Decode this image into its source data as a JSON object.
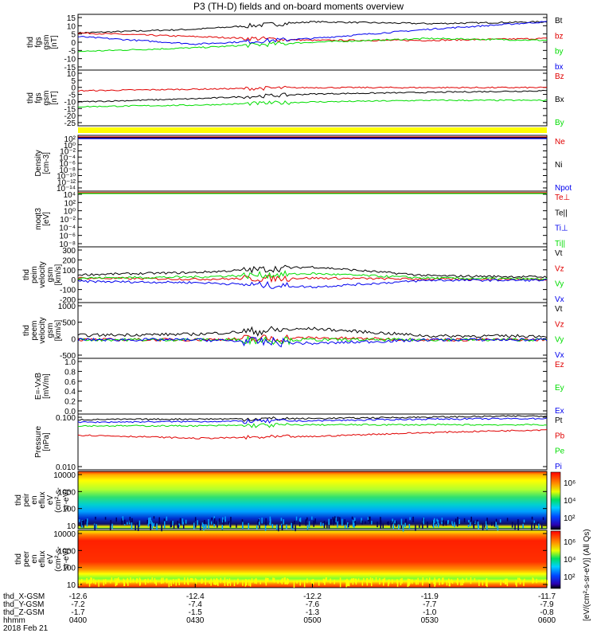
{
  "title": "P3 (TH-D) fields and on-board moments overview",
  "colors": {
    "black": "#000000",
    "red": "#e00000",
    "green": "#00dd00",
    "blue": "#0000ee",
    "yellow": "#ffff00"
  },
  "panels": [
    {
      "id": "fgs-gsm-b",
      "ylabel": [
        "thd",
        "fgs",
        "gsm",
        "[nT]"
      ],
      "ticks": [
        "15",
        "10",
        "5",
        "0",
        "-5",
        "-10",
        "-15"
      ],
      "legend": [
        {
          "label": "Bt",
          "color": "#000000"
        },
        {
          "label": "bz",
          "color": "#e00000"
        },
        {
          "label": "by",
          "color": "#00dd00"
        },
        {
          "label": "bx",
          "color": "#0000ee"
        }
      ]
    },
    {
      "id": "fgs-gsm-B",
      "ylabel": [
        "thd",
        "fgs",
        "gsm",
        "[nT]"
      ],
      "ticks": [
        "10",
        "5",
        "0",
        "-5",
        "-10",
        "-15",
        "-20",
        "-25"
      ],
      "legend": [
        {
          "label": "Bz",
          "color": "#e00000"
        },
        {
          "label": "Bx",
          "color": "#000000"
        },
        {
          "label": "By",
          "color": "#00dd00"
        }
      ]
    },
    {
      "id": "density",
      "ylabel": [
        "Density",
        "[cm-3]"
      ],
      "ticks": [
        "10²",
        "10⁰",
        "10⁻²",
        "10⁻⁴",
        "10⁻⁶",
        "10⁻⁸",
        "10⁻¹⁰",
        "10⁻¹²",
        "10⁻¹⁴"
      ],
      "legend": [
        {
          "label": "Ne",
          "color": "#e00000"
        },
        {
          "label": "Ni",
          "color": "#000000"
        },
        {
          "label": "Npot",
          "color": "#0000ee"
        }
      ]
    },
    {
      "id": "temperature",
      "ylabel": [
        "moqt3",
        "[eV]"
      ],
      "ticks": [
        "10⁴",
        "10²",
        "10⁰",
        "10⁻²",
        "10⁻⁴",
        "10⁻⁶",
        "10⁻⁸"
      ],
      "legend": [
        {
          "label": "Te⊥",
          "color": "#e00000"
        },
        {
          "label": "Te||",
          "color": "#000000"
        },
        {
          "label": "Ti⊥",
          "color": "#0000ee"
        },
        {
          "label": "Ti||",
          "color": "#00dd00"
        }
      ]
    },
    {
      "id": "peim-velocity",
      "ylabel": [
        "thd",
        "peim",
        "velocity",
        "gsm",
        "[km/s]"
      ],
      "ticks": [
        "300",
        "200",
        "100",
        "0",
        "-100",
        "-200"
      ],
      "legend": [
        {
          "label": "Vt",
          "color": "#000000"
        },
        {
          "label": "Vz",
          "color": "#e00000"
        },
        {
          "label": "Vy",
          "color": "#00dd00"
        },
        {
          "label": "Vx",
          "color": "#0000ee"
        }
      ]
    },
    {
      "id": "peem-velocity",
      "ylabel": [
        "thd",
        "peem",
        "velocity",
        "gsm",
        "[km/s]"
      ],
      "ticks": [
        "1000",
        "500",
        "0",
        "-500"
      ],
      "legend": [
        {
          "label": "Vt",
          "color": "#000000"
        },
        {
          "label": "Vz",
          "color": "#e00000"
        },
        {
          "label": "Vy",
          "color": "#00dd00"
        },
        {
          "label": "Vx",
          "color": "#0000ee"
        }
      ]
    },
    {
      "id": "efield",
      "ylabel": [
        "E=-VxB",
        "[mV/m]"
      ],
      "ticks": [
        "1.0",
        "0.8",
        "0.6",
        "0.4",
        "0.2",
        "0.0"
      ],
      "legend": [
        {
          "label": "Ez",
          "color": "#e00000"
        },
        {
          "label": "Ey",
          "color": "#00dd00"
        },
        {
          "label": "Ex",
          "color": "#0000ee"
        }
      ]
    },
    {
      "id": "pressure",
      "ylabel": [
        "Pressure",
        "[nPa]"
      ],
      "ticks": [
        "0.100",
        "0.010"
      ],
      "legend": [
        {
          "label": "Pt",
          "color": "#000000"
        },
        {
          "label": "Pb",
          "color": "#e00000"
        },
        {
          "label": "Pe",
          "color": "#00dd00"
        },
        {
          "label": "Pi",
          "color": "#0000ee"
        }
      ]
    },
    {
      "id": "peir-spec",
      "ylabel": [
        "thd",
        "peir",
        "en",
        "eflux",
        "eV",
        "(cm²-s-",
        "sr-eV)"
      ],
      "ticks": [
        "10000",
        "1000",
        "100",
        "10"
      ],
      "legend": []
    },
    {
      "id": "peer-spec",
      "ylabel": [
        "thd",
        "peer",
        "en",
        "eflux",
        "eV",
        "(cm²-s-",
        "sr-eV)"
      ],
      "ticks": [
        "10000",
        "1000",
        "100",
        "10"
      ],
      "legend": []
    }
  ],
  "colorbar": {
    "label": "[eV/(cm²-s-sr-eV)] (All Qs)",
    "ticks_top": [
      "10⁶",
      "10⁴",
      "10²"
    ],
    "ticks_bottom": [
      "10⁶",
      "10⁴",
      "10²"
    ]
  },
  "xaxis": {
    "row_labels": [
      "thd_X-GSM",
      "thd_Y-GSM",
      "thd_Z-GSM",
      "hhmm",
      "2018 Feb 21"
    ],
    "columns": [
      {
        "x": "-12.6",
        "y": "-7.2",
        "z": "-1.7",
        "t": "0400"
      },
      {
        "x": "-12.4",
        "y": "-7.4",
        "z": "-1.5",
        "t": "0430"
      },
      {
        "x": "-12.2",
        "y": "-7.6",
        "z": "-1.3",
        "t": "0500"
      },
      {
        "x": "-11.9",
        "y": "-7.7",
        "z": "-1.0",
        "t": "0530"
      },
      {
        "x": "-11.7",
        "y": "-7.9",
        "z": "-0.8",
        "t": "0600"
      }
    ]
  },
  "chart_data": [
    {
      "type": "line",
      "title": "thd fgs gsm",
      "ylabel": "[nT]",
      "ylim": [
        -15,
        15
      ],
      "x": [
        "0400",
        "0430",
        "0500",
        "0530",
        "0600"
      ],
      "series": [
        {
          "name": "Bt",
          "values": [
            5,
            7,
            11,
            10,
            11
          ]
        },
        {
          "name": "bz",
          "values": [
            5,
            3,
            1,
            1,
            2
          ]
        },
        {
          "name": "by",
          "values": [
            -5,
            -3,
            0,
            2,
            1
          ]
        },
        {
          "name": "bx",
          "values": [
            3,
            -1,
            2,
            7,
            11
          ]
        }
      ]
    },
    {
      "type": "line",
      "title": "thd fgs gsm",
      "ylabel": "[nT]",
      "ylim": [
        -25,
        10
      ],
      "x": [
        "0400",
        "0430",
        "0500",
        "0530",
        "0600"
      ],
      "series": [
        {
          "name": "Bz",
          "values": [
            -3,
            -2,
            -1,
            -1,
            -1
          ]
        },
        {
          "name": "Bx",
          "values": [
            -10,
            -8,
            -5,
            -4,
            -3
          ]
        },
        {
          "name": "By",
          "values": [
            -13,
            -12,
            -10,
            -9,
            -9
          ]
        }
      ]
    },
    {
      "type": "line",
      "title": "Density",
      "ylabel": "[cm-3]",
      "ylim": [
        "1e-14",
        "1e2"
      ],
      "series": [
        {
          "name": "Ne",
          "values": [
            1,
            1,
            1,
            1,
            1
          ]
        },
        {
          "name": "Ni",
          "values": [
            1,
            1,
            1,
            1,
            1
          ]
        },
        {
          "name": "Npot",
          "values": [
            1,
            1,
            1,
            1,
            1
          ]
        }
      ]
    },
    {
      "type": "line",
      "title": "moqt3",
      "ylabel": "[eV]",
      "ylim": [
        "1e-8",
        "1e4"
      ],
      "series": [
        {
          "name": "Te⊥",
          "values": [
            1000,
            1000,
            1000,
            1000,
            1000
          ]
        },
        {
          "name": "Ti||",
          "values": [
            3000,
            3000,
            3000,
            3000,
            3000
          ]
        }
      ]
    },
    {
      "type": "line",
      "title": "thd peim velocity gsm",
      "ylabel": "[km/s]",
      "ylim": [
        -200,
        300
      ],
      "x": [
        "0400",
        "0430",
        "0500",
        "0530",
        "0600"
      ],
      "series": [
        {
          "name": "Vt",
          "values": [
            50,
            70,
            120,
            40,
            30
          ]
        },
        {
          "name": "Vz",
          "values": [
            20,
            10,
            20,
            10,
            10
          ]
        },
        {
          "name": "Vy",
          "values": [
            20,
            30,
            60,
            20,
            10
          ]
        },
        {
          "name": "Vx",
          "values": [
            -10,
            -20,
            -60,
            0,
            0
          ]
        }
      ]
    },
    {
      "type": "line",
      "title": "thd peem velocity gsm",
      "ylabel": "[km/s]",
      "ylim": [
        -500,
        1000
      ],
      "x": [
        "0400",
        "0430",
        "0500",
        "0530",
        "0600"
      ],
      "series": [
        {
          "name": "Vt",
          "values": [
            120,
            150,
            300,
            100,
            100
          ]
        },
        {
          "name": "Vz",
          "values": [
            0,
            0,
            50,
            0,
            0
          ]
        },
        {
          "name": "Vy",
          "values": [
            0,
            0,
            0,
            0,
            0
          ]
        },
        {
          "name": "Vx",
          "values": [
            0,
            0,
            -100,
            0,
            0
          ]
        }
      ]
    },
    {
      "type": "line",
      "title": "E=-VxB",
      "ylabel": "[mV/m]",
      "ylim": [
        0,
        1
      ],
      "series": []
    },
    {
      "type": "line",
      "title": "Pressure",
      "ylabel": "[nPa]",
      "ylim": [
        0.001,
        0.3
      ],
      "x": [
        "0400",
        "0430",
        "0500",
        "0530",
        "0600"
      ],
      "series": [
        {
          "name": "Pt",
          "values": [
            0.17,
            0.18,
            0.19,
            0.22,
            0.25
          ]
        },
        {
          "name": "Pb",
          "values": [
            0.035,
            0.025,
            0.03,
            0.045,
            0.06
          ]
        },
        {
          "name": "Pe",
          "values": [
            0.09,
            0.09,
            0.1,
            0.1,
            0.1
          ]
        },
        {
          "name": "Pi",
          "values": [
            0.13,
            0.14,
            0.15,
            0.18,
            0.19
          ]
        }
      ]
    },
    {
      "type": "heatmap",
      "title": "thd peir en eflux",
      "ylabel": "eV",
      "ylim": [
        10,
        25000
      ]
    },
    {
      "type": "heatmap",
      "title": "thd peer en eflux",
      "ylabel": "eV",
      "ylim": [
        10,
        25000
      ]
    }
  ]
}
